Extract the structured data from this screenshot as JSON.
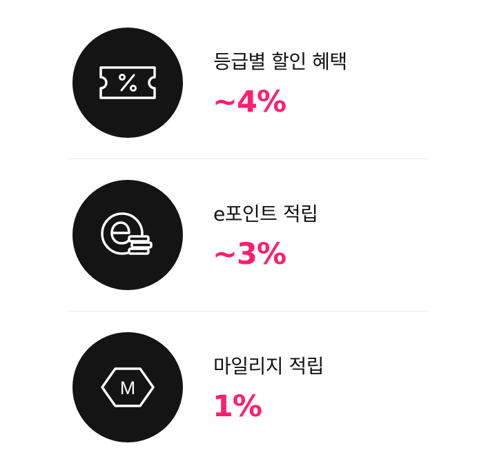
{
  "benefits": [
    {
      "icon": "coupon-percent-icon",
      "title": "등급별 할인 혜택",
      "value": "~4%"
    },
    {
      "icon": "e-point-coins-icon",
      "title": "e포인트 적립",
      "value": "~3%"
    },
    {
      "icon": "mileage-hexagon-icon",
      "title": "마일리지 적립",
      "value": "1%",
      "icon_letter": "M"
    }
  ],
  "colors": {
    "badge_bg": "#141414",
    "accent": "#ff1f6e",
    "divider": "#e6e6e6"
  }
}
